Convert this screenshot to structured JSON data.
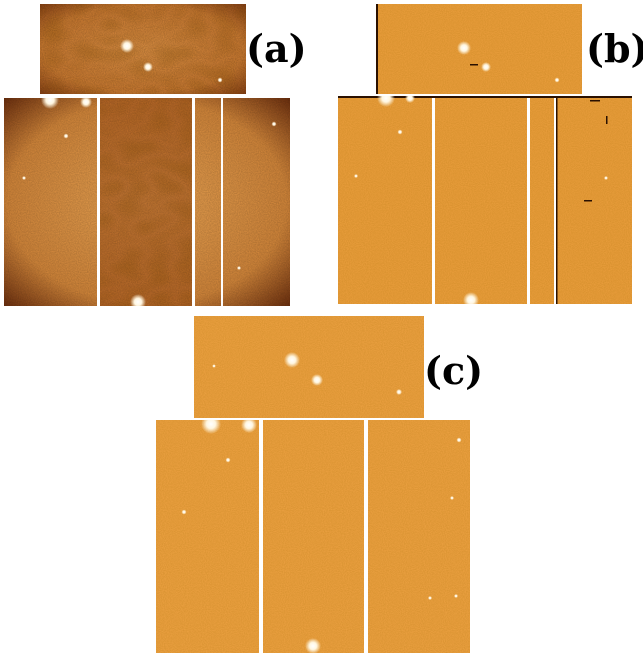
{
  "figure": {
    "panels": [
      {
        "id": "a",
        "label": "(a)",
        "stretch": "dark-vignetted",
        "colors": {
          "bg": "#d98a3a",
          "dark": "#6b2a08",
          "light": "#f3b060"
        }
      },
      {
        "id": "b",
        "label": "(b)",
        "stretch": "flat",
        "colors": {
          "bg": "#f0a040",
          "dark": "#c06a1c",
          "light": "#ffc270"
        }
      },
      {
        "id": "c",
        "label": "(c)",
        "stretch": "flat",
        "colors": {
          "bg": "#f0a040",
          "dark": "#c87420",
          "light": "#ffcc80"
        }
      }
    ]
  }
}
